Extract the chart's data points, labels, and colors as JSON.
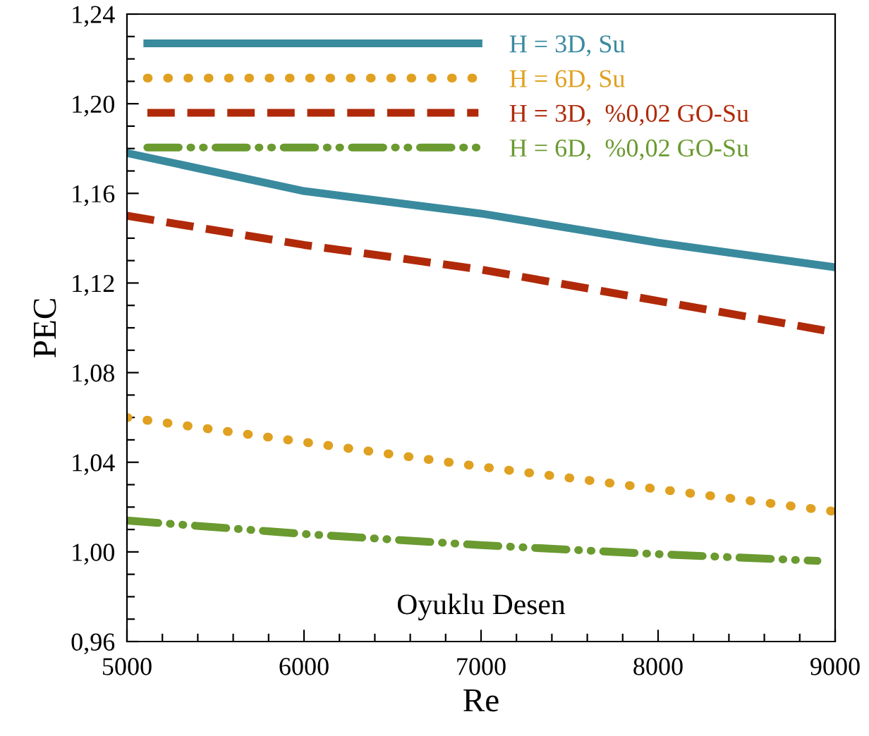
{
  "chart_data": {
    "type": "line",
    "xlabel": "Re",
    "ylabel": "PEC",
    "annotations": [
      "Oyuklu Desen"
    ],
    "x": [
      5000,
      6000,
      7000,
      8000,
      9000
    ],
    "series": [
      {
        "name": "H = 3D, Su",
        "color": "#3a8a9e",
        "line_style": "solid",
        "values": [
          1.178,
          1.161,
          1.151,
          1.138,
          1.127
        ]
      },
      {
        "name": "H = 6D, Su",
        "color": "#e0a020",
        "line_style": "dotted",
        "values": [
          1.06,
          1.049,
          1.038,
          1.028,
          1.018
        ]
      },
      {
        "name": "H = 3D,  %0,02 GO-Su",
        "color": "#b02a0a",
        "line_style": "dashed",
        "values": [
          1.15,
          1.137,
          1.126,
          1.112,
          1.098
        ]
      },
      {
        "name": "H = 6D,  %0,02 GO-Su",
        "color": "#6a9a30",
        "line_style": "dashdotdot",
        "x": [
          5000,
          6000,
          7000,
          8000,
          8900
        ],
        "values": [
          1.014,
          1.008,
          1.003,
          0.999,
          0.996
        ]
      }
    ],
    "xlim": [
      5000,
      9000
    ],
    "ylim": [
      0.96,
      1.24
    ],
    "xticks": [
      5000,
      {
        "value": 5200,
        "label": null
      },
      {
        "value": 5400,
        "label": null
      },
      {
        "value": 5600,
        "label": null
      },
      {
        "value": 5800,
        "label": null
      },
      6000,
      {
        "value": 6200,
        "label": null
      },
      {
        "value": 6400,
        "label": null
      },
      {
        "value": 6600,
        "label": null
      },
      {
        "value": 6800,
        "label": null
      },
      7000,
      {
        "value": 7200,
        "label": null
      },
      {
        "value": 7400,
        "label": null
      },
      {
        "value": 7600,
        "label": null
      },
      {
        "value": 7800,
        "label": null
      },
      8000,
      {
        "value": 8200,
        "label": null
      },
      {
        "value": 8400,
        "label": null
      },
      {
        "value": 8600,
        "label": null
      },
      {
        "value": 8800,
        "label": null
      },
      9000
    ],
    "yticks": [
      {
        "value": 0.96,
        "label": "0,96"
      },
      {
        "value": 0.97,
        "label": null
      },
      {
        "value": 0.98,
        "label": null
      },
      {
        "value": 0.99,
        "label": null
      },
      {
        "value": 1.0,
        "label": "1,00"
      },
      {
        "value": 1.01,
        "label": null
      },
      {
        "value": 1.02,
        "label": null
      },
      {
        "value": 1.03,
        "label": null
      },
      {
        "value": 1.04,
        "label": "1,04"
      },
      {
        "value": 1.05,
        "label": null
      },
      {
        "value": 1.06,
        "label": null
      },
      {
        "value": 1.07,
        "label": null
      },
      {
        "value": 1.08,
        "label": "1,08"
      },
      {
        "value": 1.09,
        "label": null
      },
      {
        "value": 1.1,
        "label": null
      },
      {
        "value": 1.11,
        "label": null
      },
      {
        "value": 1.12,
        "label": "1,12"
      },
      {
        "value": 1.13,
        "label": null
      },
      {
        "value": 1.14,
        "label": null
      },
      {
        "value": 1.15,
        "label": null
      },
      {
        "value": 1.16,
        "label": "1,16"
      },
      {
        "value": 1.17,
        "label": null
      },
      {
        "value": 1.18,
        "label": null
      },
      {
        "value": 1.19,
        "label": null
      },
      {
        "value": 1.2,
        "label": "1,20"
      },
      {
        "value": 1.21,
        "label": null
      },
      {
        "value": 1.22,
        "label": null
      },
      {
        "value": 1.23,
        "label": null
      },
      {
        "value": 1.24,
        "label": "1,24"
      }
    ],
    "grid": false,
    "legend": "top",
    "marker": "none"
  }
}
